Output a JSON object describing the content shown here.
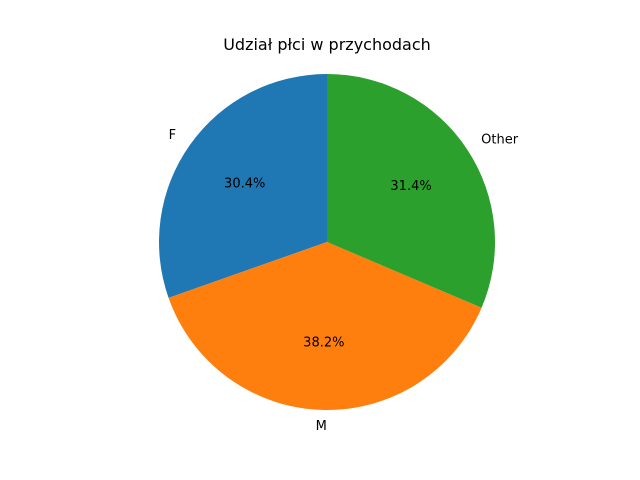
{
  "chart_data": {
    "type": "pie",
    "title": "Udział płci w przychodach",
    "categories": [
      "F",
      "M",
      "Other"
    ],
    "values": [
      30.4,
      38.2,
      31.4
    ],
    "value_labels": [
      "30.4%",
      "38.2%",
      "31.4%"
    ],
    "colors": [
      "#1f77b4",
      "#ff7f0e",
      "#2ca02c"
    ],
    "start_angle_deg": 90,
    "direction": "counterclockwise",
    "legend": "none"
  }
}
